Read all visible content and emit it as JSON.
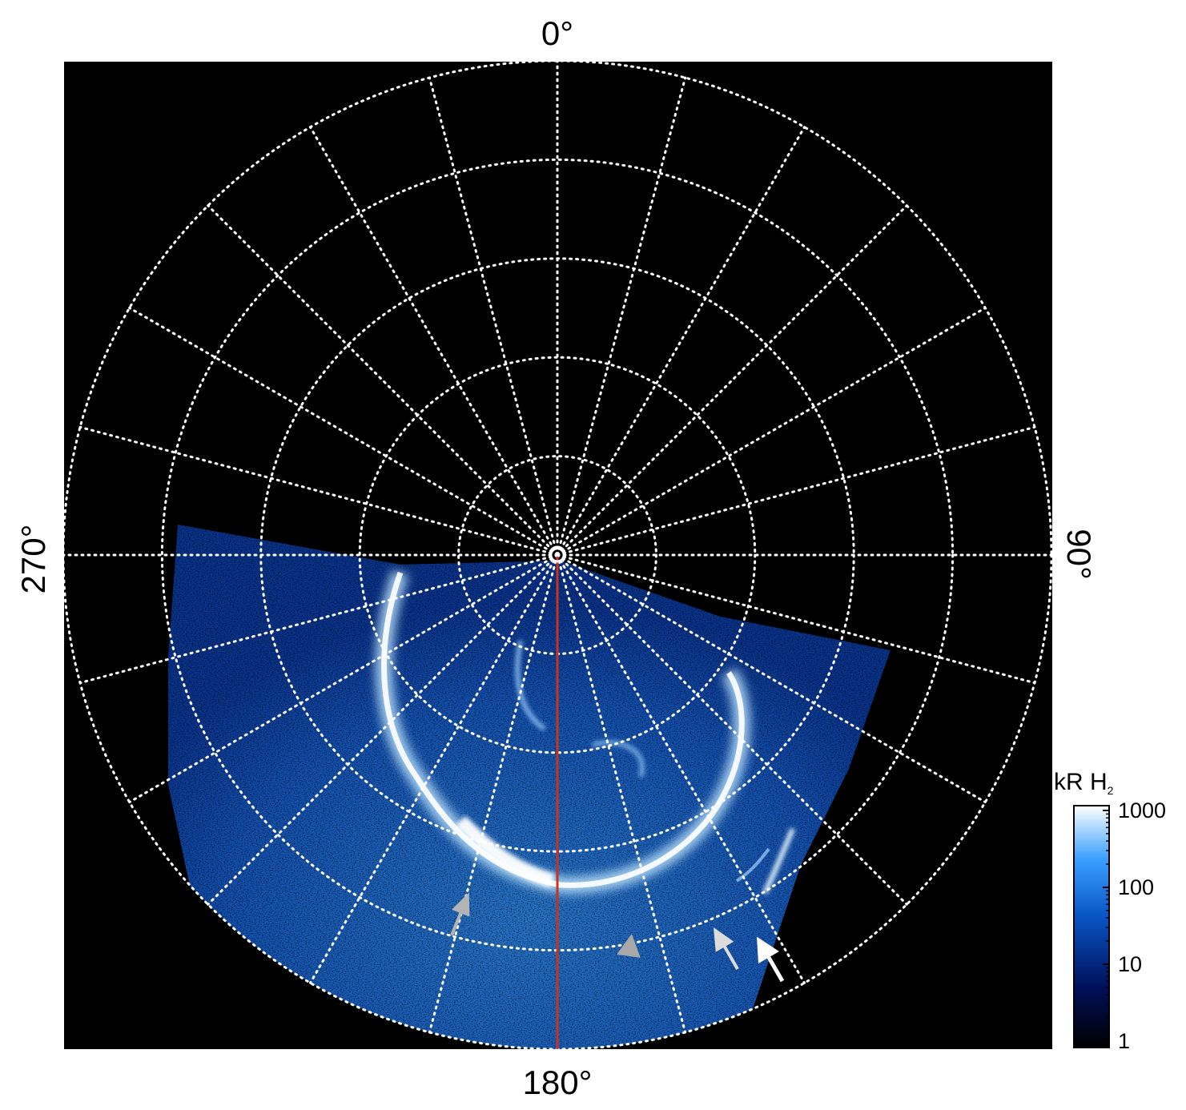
{
  "chart_data": {
    "type": "heatmap",
    "projection": "polar",
    "longitude_labels": {
      "top": "0°",
      "right": "90°",
      "bottom": "180°",
      "left": "270°"
    },
    "longitude_gridline_step_deg": 15,
    "latitude_rings": 5,
    "grid": "dotted white",
    "reference_meridian_deg": 180,
    "reference_meridian_color": "#c8321e",
    "colorbar": {
      "label": "kR H",
      "label_subscript": "2",
      "scale": "log",
      "range": [
        1,
        1000
      ],
      "ticks": [
        "1",
        "10",
        "100",
        "1000"
      ],
      "colors": [
        "#000000",
        "#00105a",
        "#0a56c8",
        "#3aa0ff",
        "#ffffff"
      ],
      "position": "right"
    },
    "annotations": [
      {
        "type": "arrow",
        "color": "gray"
      },
      {
        "type": "arrow",
        "color": "gray"
      },
      {
        "type": "arrow",
        "color": "light-gray"
      },
      {
        "type": "arrow",
        "color": "white"
      }
    ],
    "background": "#000000",
    "data_color": "#1e78e6",
    "peak_color": "#ffffff"
  }
}
